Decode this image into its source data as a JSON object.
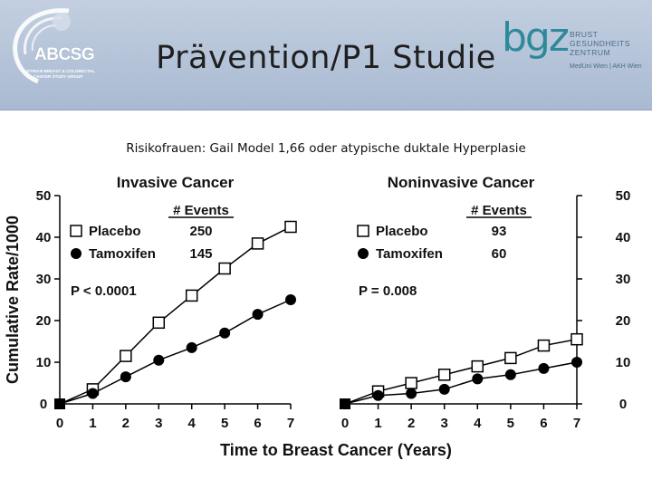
{
  "header": {
    "title": "Prävention/P1 Studie",
    "logo_left": {
      "name": "ABCSG",
      "line1": "AUSTRIAN BREAST & COLORECTAL",
      "line2": "CANCER STUDY GROUP"
    },
    "logo_right": {
      "name": "bgz",
      "line1": "BRUST",
      "line2": "GESUNDHEITS",
      "line3": "ZENTRUM",
      "tagline": "MedUni Wien | AKH Wien"
    },
    "colors": {
      "header_bg": "#b3c2d8",
      "bgz_teal": "#2e8a9a"
    }
  },
  "subtitle": "Risikofrauen: Gail Model 1,66 oder atypische duktale Hyperplasie",
  "chart_data": [
    {
      "type": "line",
      "title": "Invasive Cancer",
      "xlabel": "Time to Breast Cancer (Years)",
      "ylabel": "Cumulative Rate/1000",
      "x": [
        0,
        1,
        2,
        3,
        4,
        5,
        6,
        7
      ],
      "xticks": [
        "0",
        "1",
        "2",
        "3",
        "4",
        "5",
        "6",
        "7"
      ],
      "ylim": [
        0,
        50
      ],
      "yticks": [
        "0",
        "10",
        "20",
        "30",
        "40",
        "50"
      ],
      "y_axis_side": "left",
      "events_header": "# Events",
      "annotation": "P < 0.0001",
      "series": [
        {
          "name": "Placebo",
          "marker": "open-square",
          "events": "250",
          "values": [
            0,
            3.5,
            11.5,
            19.5,
            26,
            32.5,
            38.5,
            42.5
          ]
        },
        {
          "name": "Tamoxifen",
          "marker": "filled-circle",
          "events": "145",
          "values": [
            0,
            2.5,
            6.5,
            10.5,
            13.5,
            17,
            21.5,
            25
          ]
        }
      ]
    },
    {
      "type": "line",
      "title": "Noninvasive Cancer",
      "xlabel": "Time to Breast Cancer (Years)",
      "ylabel": "",
      "x": [
        0,
        1,
        2,
        3,
        4,
        5,
        6,
        7
      ],
      "xticks": [
        "0",
        "1",
        "2",
        "3",
        "4",
        "5",
        "6",
        "7"
      ],
      "ylim": [
        0,
        50
      ],
      "yticks": [
        "0",
        "10",
        "20",
        "30",
        "40",
        "50"
      ],
      "y_axis_side": "right",
      "events_header": "# Events",
      "annotation": "P = 0.008",
      "series": [
        {
          "name": "Placebo",
          "marker": "open-square",
          "events": "93",
          "values": [
            0,
            3,
            5,
            7,
            9,
            11,
            14,
            15.5
          ]
        },
        {
          "name": "Tamoxifen",
          "marker": "filled-circle",
          "events": "60",
          "values": [
            0,
            2,
            2.5,
            3.5,
            6,
            7,
            8.5,
            10
          ]
        }
      ]
    }
  ]
}
